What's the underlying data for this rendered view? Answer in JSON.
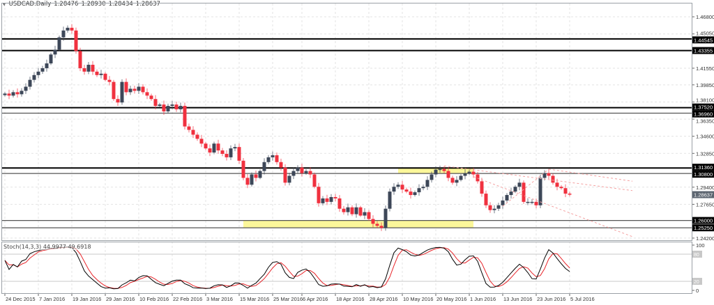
{
  "header": {
    "symbol": "USDCAD.Daily",
    "open": "1.28476",
    "high": "1.28930",
    "low": "1.28434",
    "close": "1.28637",
    "collapse_icon": "triangle-down-icon"
  },
  "colors": {
    "bull": "#3d4758",
    "bear": "#f0313f",
    "level": "#000000",
    "zone": "#fbf79a",
    "trend": "#f4a0a0",
    "stoch_main": "#000000",
    "stoch_signal": "#e8262b"
  },
  "chart_data": {
    "type": "candlestick",
    "symbol": "USDCAD",
    "timeframe": "Daily",
    "first_open": 1.388,
    "closes": [
      1.3896,
      1.3875,
      1.391,
      1.3889,
      1.3924,
      1.3966,
      1.4036,
      1.4085,
      1.412,
      1.4155,
      1.4204,
      1.4295,
      1.4344,
      1.447,
      1.454,
      1.4568,
      1.454,
      1.433,
      1.4155,
      1.412,
      1.419,
      1.412,
      1.4085,
      1.4099,
      1.4036,
      1.4015,
      1.384,
      1.3805,
      1.4015,
      1.391,
      1.3945,
      1.3924,
      1.3966,
      1.391,
      1.3875,
      1.384,
      1.377,
      1.3784,
      1.3714,
      1.377,
      1.3784,
      1.3735,
      1.377,
      1.356,
      1.3525,
      1.3476,
      1.3434,
      1.3385,
      1.3336,
      1.3294,
      1.3385,
      1.3315,
      1.328,
      1.3245,
      1.3336,
      1.335,
      1.321,
      1.3035,
      1.2965,
      1.307,
      1.3035,
      1.3105,
      1.3196,
      1.3245,
      1.3266,
      1.3196,
      1.314,
      1.2986,
      1.3056,
      1.3105,
      1.314,
      1.3084,
      1.3105,
      1.307,
      1.2944,
      1.2776,
      1.2825,
      1.279,
      1.2839,
      1.2825,
      1.272,
      1.2685,
      1.2734,
      1.2664,
      1.2734,
      1.265,
      1.2685,
      1.2615,
      1.2566,
      1.2545,
      1.2524,
      1.272,
      1.2895,
      1.2944,
      1.2965,
      1.2916,
      1.2895,
      1.286,
      1.2888,
      1.293,
      1.2944,
      1.3014,
      1.307,
      1.3119,
      1.3126,
      1.3105,
      1.3035,
      1.2986,
      1.3014,
      1.3056,
      1.3084,
      1.3098,
      1.307,
      1.3,
      1.2874,
      1.2755,
      1.2706,
      1.272,
      1.2755,
      1.2804,
      1.286,
      1.2895,
      1.2944,
      1.2986,
      1.279,
      1.279,
      1.279,
      1.2755,
      1.3035,
      1.3084,
      1.3056,
      1.2986,
      1.2944,
      1.293,
      1.2874,
      1.28637
    ],
    "price_axis": [
      "1.46800",
      "1.45050",
      "1.41550",
      "1.39850",
      "1.38100",
      "1.36350",
      "1.34600",
      "1.32850",
      "1.29400",
      "1.27650",
      "1.24200"
    ],
    "ylim": [
      1.2398,
      1.4816
    ],
    "grid": true,
    "date_labels": [
      "24 Dec 2015",
      "7 Jan 2016",
      "19 Jan 2016",
      "29 Jan 2016",
      "10 Feb 2016",
      "22 Feb 2016",
      "3 Mar 2016",
      "15 Mar 2016",
      "25 Mar 2016",
      "6 Apr 2016",
      "18 Apr 2016",
      "28 Apr 2016",
      "10 May 2016",
      "20 May 2016",
      "1 Jun 2016",
      "13 Jun 2016",
      "23 Jun 2016",
      "5 Jul 2016"
    ],
    "levels": [
      {
        "label": "1.44545",
        "price": 1.44545,
        "weight": "thick"
      },
      {
        "label": "1.43355",
        "price": 1.43355,
        "weight": "thick"
      },
      {
        "label": "1.37520",
        "price": 1.3752,
        "weight": "thick"
      },
      {
        "label": "1.36960",
        "price": 1.3696,
        "weight": "thin"
      },
      {
        "label": "1.31360",
        "price": 1.3136,
        "weight": "thick"
      },
      {
        "label": "1.30800",
        "price": 1.308,
        "weight": "thin"
      },
      {
        "label": "1.26000",
        "price": 1.26,
        "weight": "thin"
      },
      {
        "label": "1.25250",
        "price": 1.2525,
        "weight": "thin"
      }
    ],
    "current_price_label": "1.28637",
    "zones": [
      {
        "from_bar": 57,
        "to_bar": 112,
        "low": 1.2525,
        "high": 1.26
      },
      {
        "from_bar": 94,
        "to_bar": 112,
        "low": 1.308,
        "high": 1.3136
      }
    ],
    "trendlines": [
      {
        "from_bar": 105,
        "from": 1.3157,
        "to_bar": 150,
        "to": 1.2905
      },
      {
        "from_bar": 112,
        "from": 1.3048,
        "to_bar": 150,
        "to": 1.2435
      },
      {
        "from_bar": 130,
        "from": 1.3124,
        "to_bar": 150,
        "to": 1.3001
      },
      {
        "from_bar": 119,
        "from": 1.2745,
        "to_bar": 130,
        "to": 1.3124
      }
    ],
    "stochastic": {
      "label": "Stoch(14,3,3)",
      "main_value": "44.9977",
      "signal_value": "49.6918",
      "k": 14,
      "d": 3,
      "slowing": 3,
      "scale": [
        "100",
        "0"
      ],
      "levels": [
        "80",
        "20"
      ]
    }
  }
}
